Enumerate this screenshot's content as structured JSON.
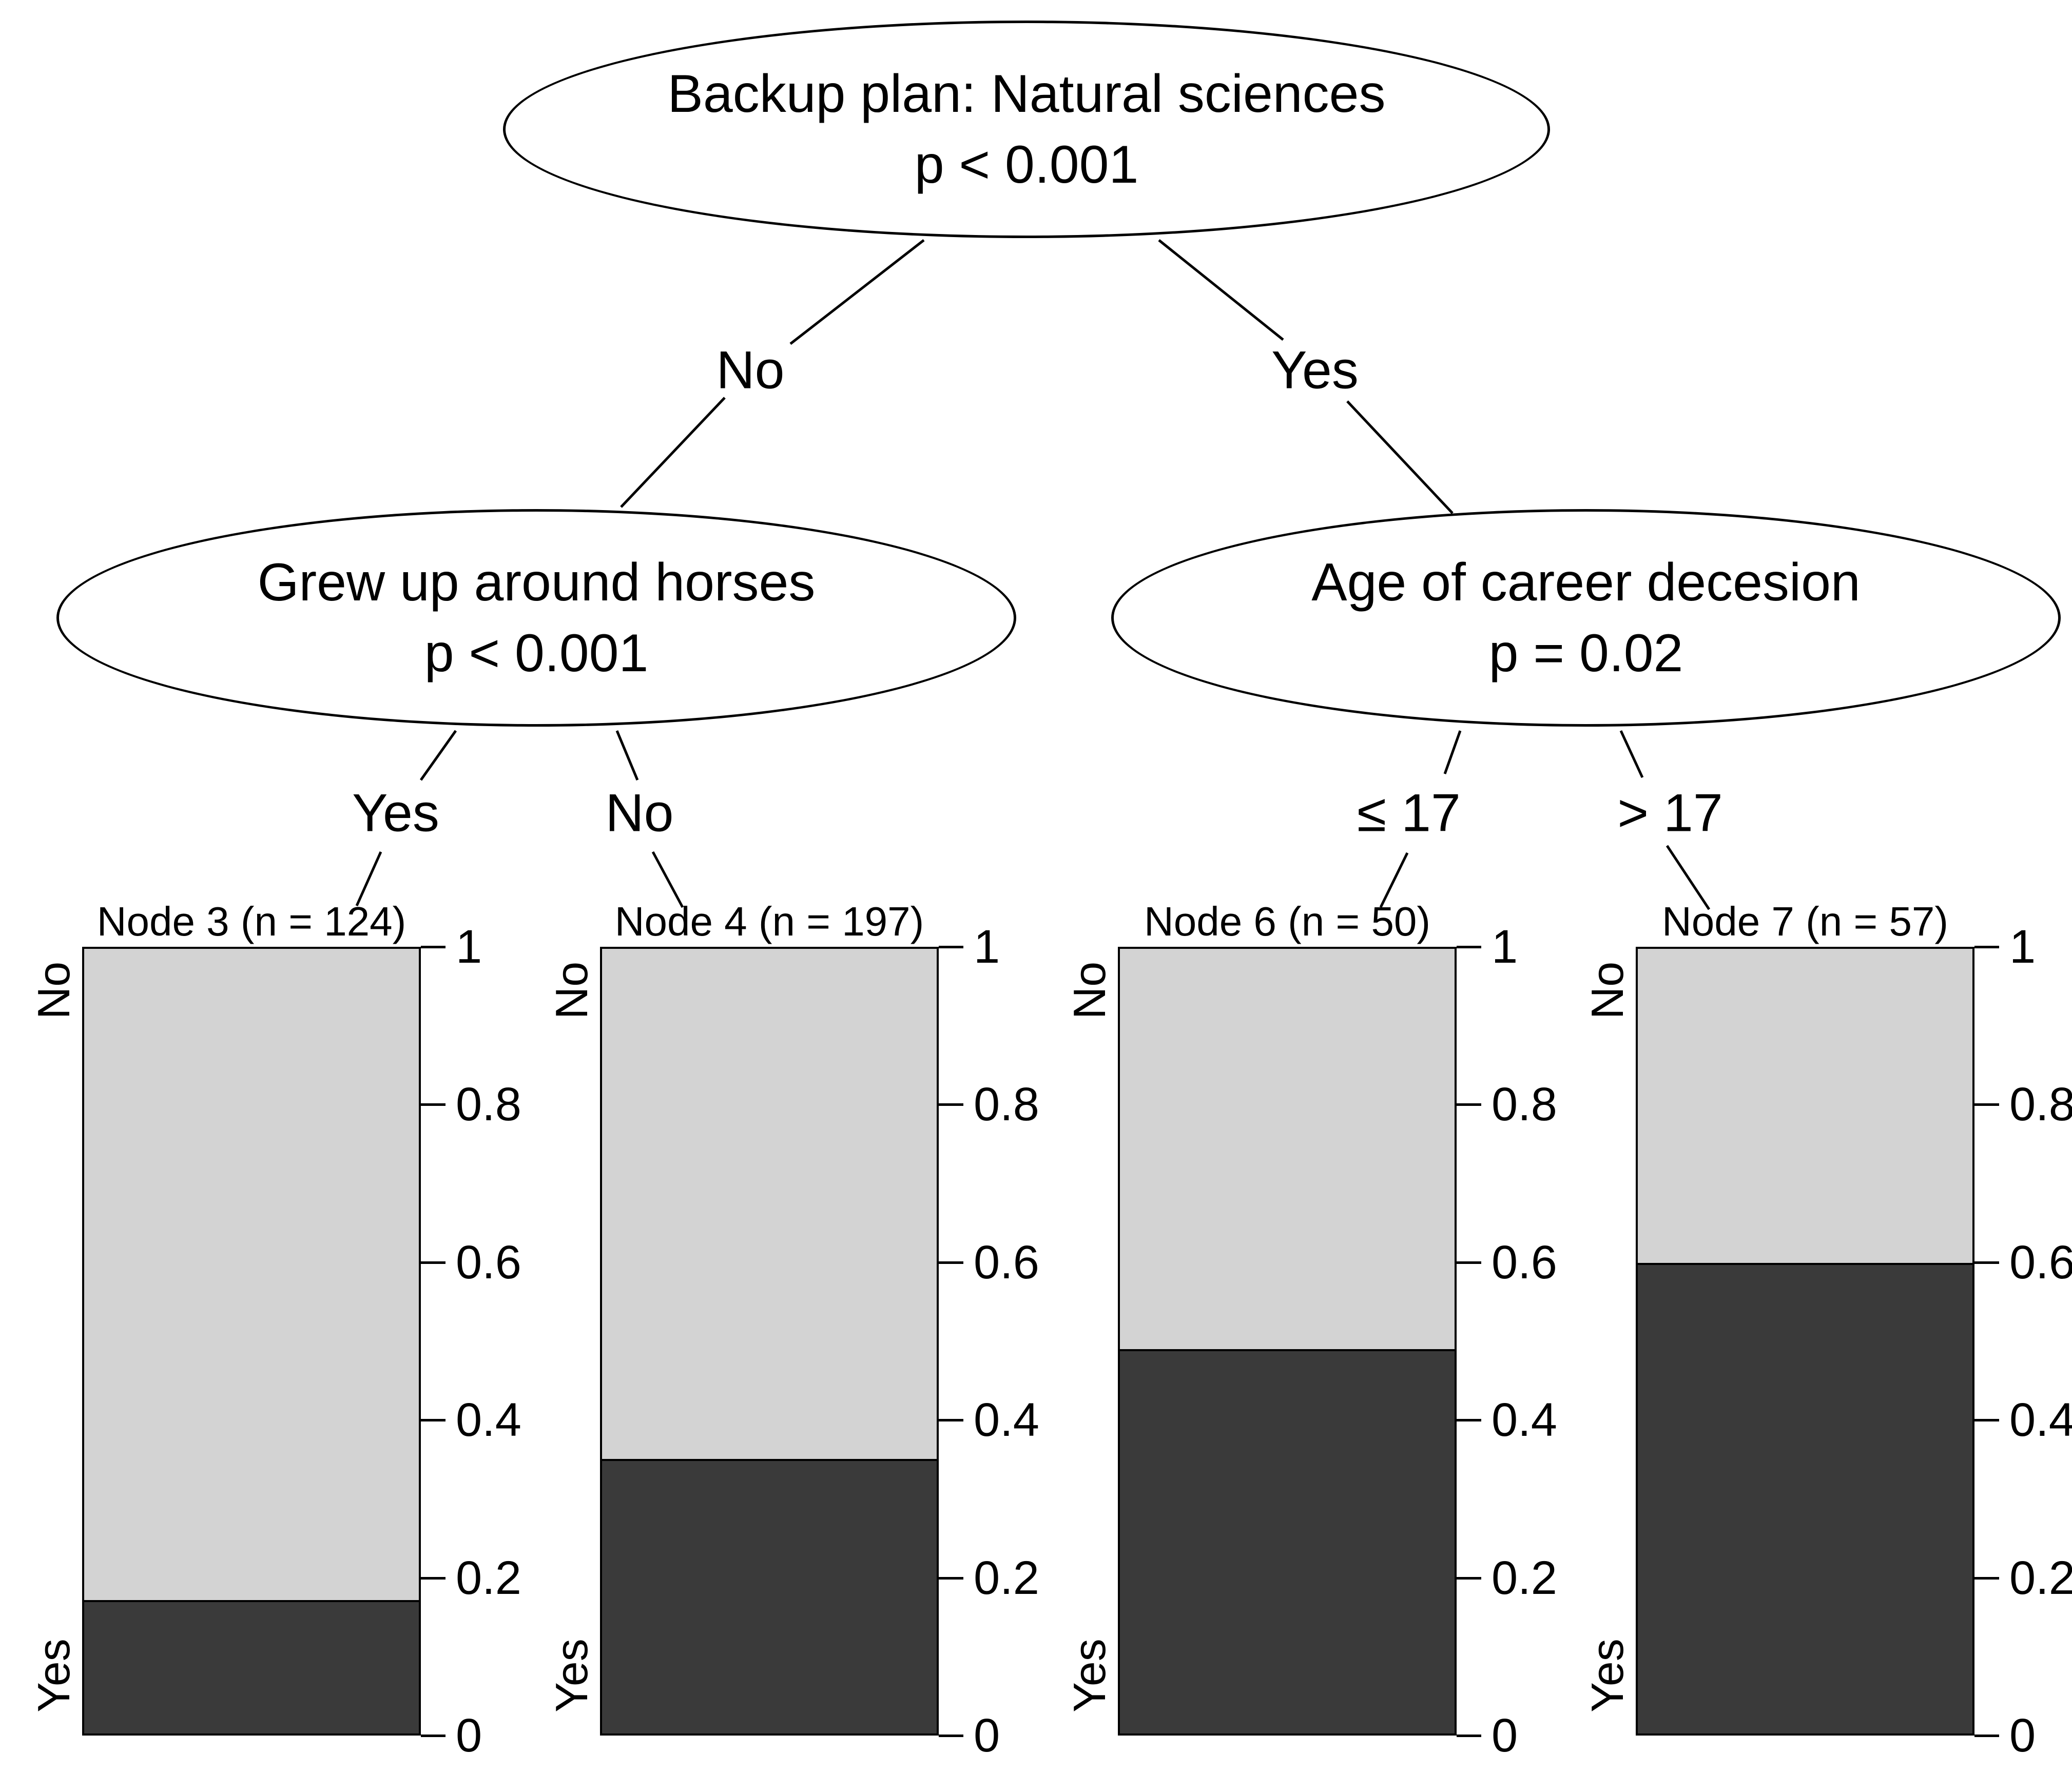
{
  "figure": {
    "background": "#ffffff",
    "text_color": "#000000"
  },
  "colors": {
    "yes_fill_dark": "#3a3a3a",
    "no_fill_light": "#d3d3d3",
    "stroke": "#000000"
  },
  "tree": {
    "root": {
      "label": "Backup plan: Natural sciences",
      "p_value": "p < 0.001",
      "left_branch_label": "No",
      "right_branch_label": "Yes"
    },
    "left_child": {
      "label": "Grew up around horses",
      "p_value": "p < 0.001",
      "left_branch_label": "Yes",
      "right_branch_label": "No"
    },
    "right_child": {
      "label": "Age of career decesion",
      "p_value": "p = 0.02",
      "left_branch_label": "≤ 17",
      "right_branch_label": "> 17"
    }
  },
  "axis": {
    "range": [
      0,
      1
    ],
    "ticks": [
      "0",
      "0.2",
      "0.4",
      "0.6",
      "0.8",
      "1"
    ]
  },
  "leaf_side_labels": {
    "top": "No",
    "bottom": "Yes"
  },
  "chart_data": {
    "type": "bar",
    "variant": "stacked vertical bars, one per terminal node of a conditional inference tree",
    "stack_categories": [
      "Yes (dark, bottom)",
      "No (light, top)"
    ],
    "ylim": [
      0,
      1
    ],
    "grid": false,
    "legend_position": "none",
    "leaves": [
      {
        "title": "Node 3 (n = 124)",
        "node": 3,
        "n": 124,
        "yes": 0.17,
        "no": 0.83
      },
      {
        "title": "Node 4 (n = 197)",
        "node": 4,
        "n": 197,
        "yes": 0.35,
        "no": 0.65
      },
      {
        "title": "Node 6 (n = 50)",
        "node": 6,
        "n": 50,
        "yes": 0.49,
        "no": 0.51
      },
      {
        "title": "Node 7 (n = 57)",
        "node": 7,
        "n": 57,
        "yes": 0.6,
        "no": 0.4
      }
    ]
  }
}
